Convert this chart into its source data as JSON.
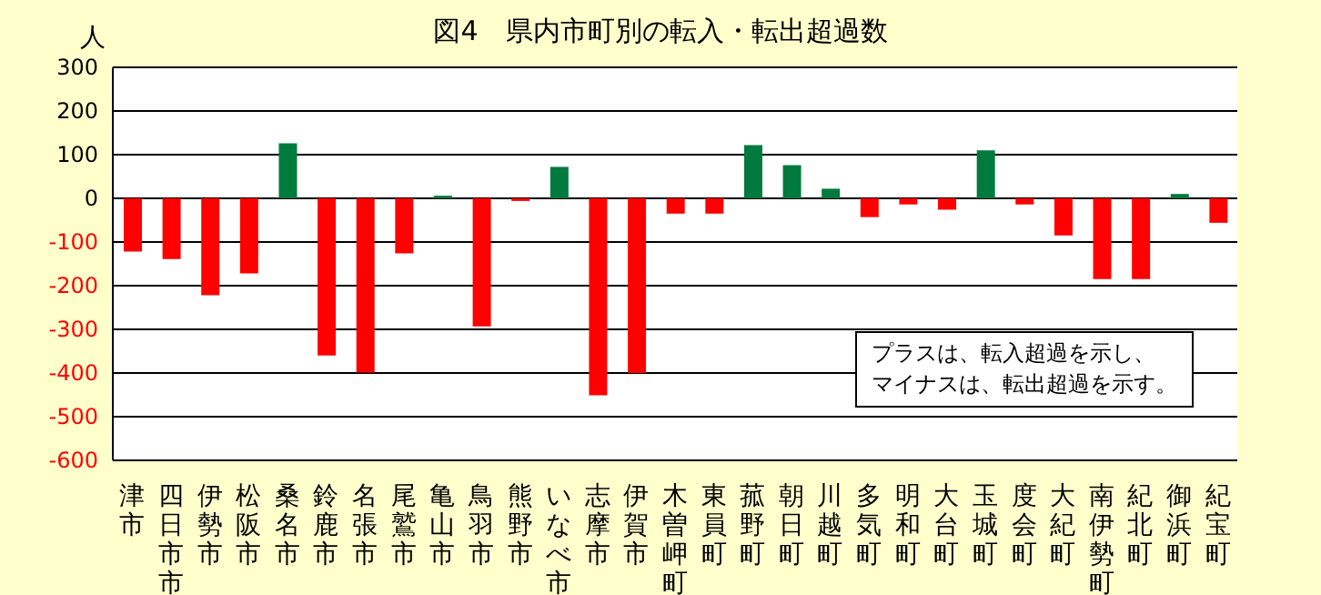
{
  "chart_data": {
    "type": "bar",
    "title": "図4　県内市町別の転入・転出超過数",
    "ylabel": "人",
    "categories": [
      "津市",
      "四日市市",
      "伊勢市",
      "松阪市",
      "桑名市",
      "鈴鹿市",
      "名張市",
      "尾鷲市",
      "亀山市",
      "鳥羽市",
      "熊野市",
      "いなべ市",
      "志摩市",
      "伊賀市",
      "木曽岬町",
      "東員町",
      "菰野町",
      "朝日町",
      "川越町",
      "多気町",
      "明和町",
      "大台町",
      "玉城町",
      "度会町",
      "大紀町",
      "南伊勢町",
      "紀北町",
      "御浜町",
      "紀宝町"
    ],
    "values": [
      -122,
      -139,
      -222,
      -172,
      126,
      -360,
      -399,
      -126,
      6,
      -293,
      -6,
      72,
      -451,
      -400,
      -35,
      -35,
      122,
      76,
      22,
      -43,
      -14,
      -26,
      110,
      -14,
      -85,
      -185,
      -185,
      10,
      -56
    ],
    "colors": [
      "#ff0000",
      "#ff0000",
      "#ff0000",
      "#ff0000",
      "#007a3d",
      "#ff0000",
      "#ff0000",
      "#ff0000",
      "#007a3d",
      "#ff0000",
      "#ff0000",
      "#007a3d",
      "#ff0000",
      "#ff0000",
      "#ff0000",
      "#ff0000",
      "#007a3d",
      "#007a3d",
      "#007a3d",
      "#ff0000",
      "#ff0000",
      "#ff0000",
      "#007a3d",
      "#ff0000",
      "#ff0000",
      "#ff0000",
      "#ff0000",
      "#007a3d",
      "#ff0000"
    ],
    "ylim": [
      -600,
      300
    ],
    "yticks": [
      -600,
      -500,
      -400,
      -300,
      -200,
      -100,
      0,
      100,
      200,
      300
    ],
    "grid": "y",
    "annotations": [
      "プラスは、転入超過を示し、",
      "マイナスは、転出超過を示す。"
    ]
  }
}
